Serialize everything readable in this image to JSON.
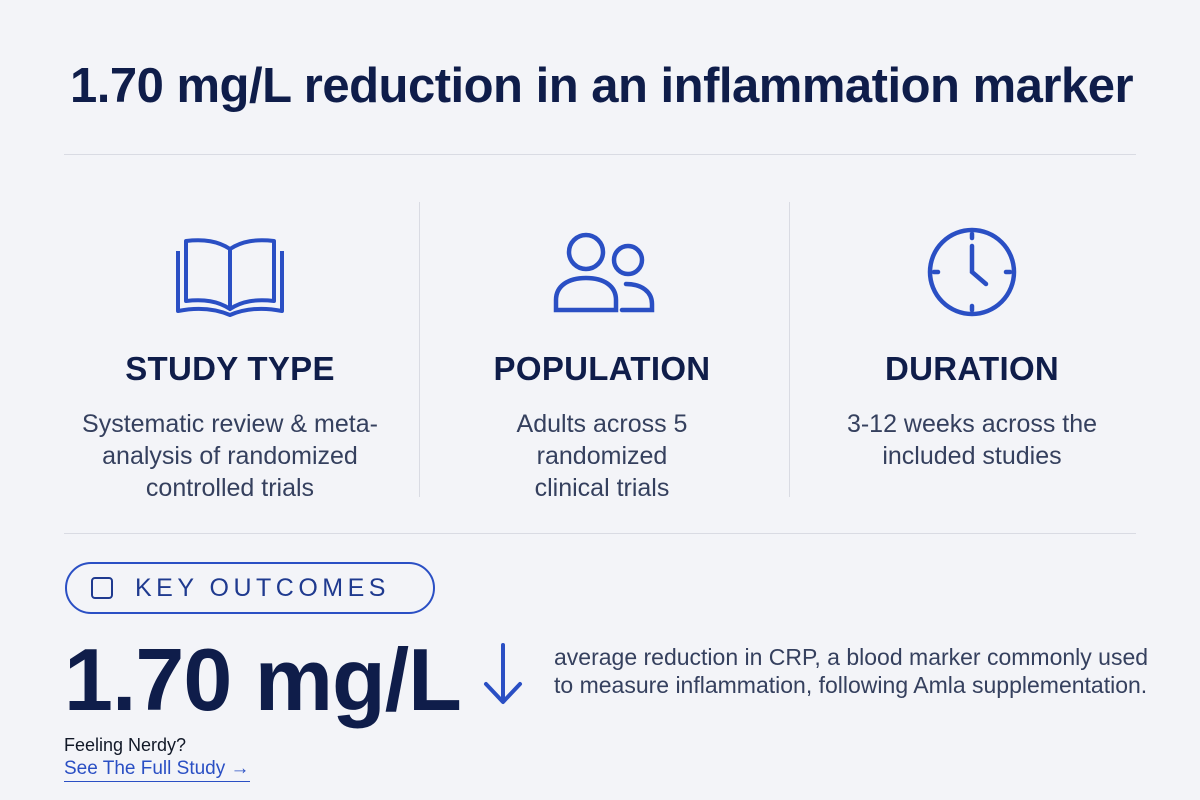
{
  "headline": "1.70 mg/L reduction in an inflammation marker",
  "columns": [
    {
      "icon": "open-book-icon",
      "title": "STUDY TYPE",
      "description": "Systematic review & meta-analysis of randomized controlled trials"
    },
    {
      "icon": "people-icon",
      "title": "POPULATION",
      "description": "Adults across 5 randomized clinical trials"
    },
    {
      "icon": "clock-icon",
      "title": "DURATION",
      "description": "3-12 weeks across the included studies"
    }
  ],
  "key_outcomes": {
    "label": "KEY OUTCOMES",
    "value": "1.70 mg/L",
    "arrow_icon": "arrow-down-icon",
    "description": "average reduction in CRP, a blood marker commonly used to measure inflammation, following Amla supplementation."
  },
  "footer": {
    "prompt": "Feeling Nerdy?",
    "link_label": "See The Full Study →"
  },
  "colors": {
    "accent": "#2a4fc4",
    "heading": "#0f1d4a",
    "body_text": "#35405e",
    "background": "#f3f4f8"
  }
}
